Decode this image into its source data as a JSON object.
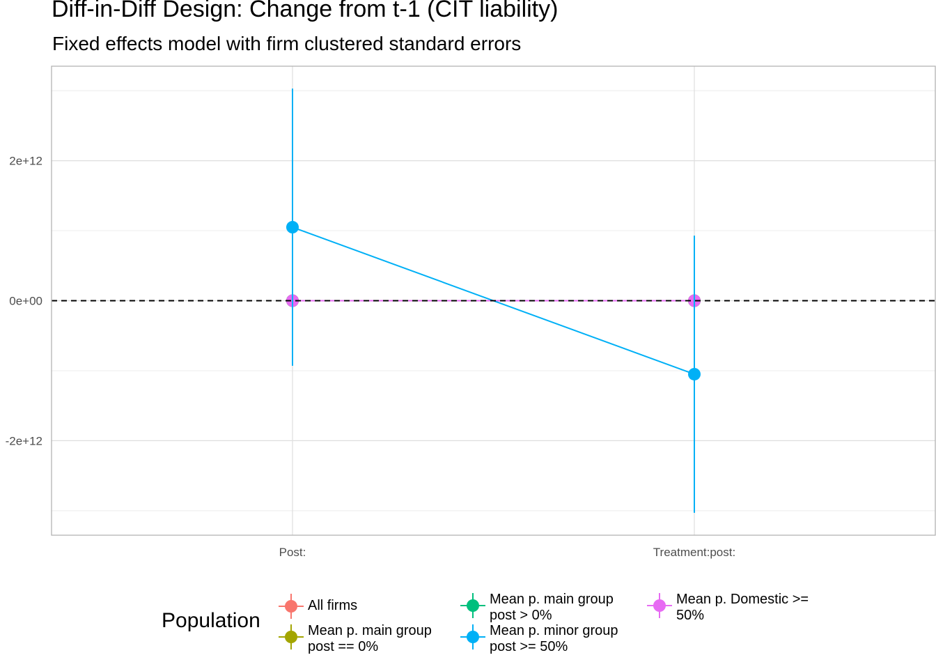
{
  "chart_data": {
    "type": "scatter",
    "title": "Diff-in-Diff Design: Change from t-1 (CIT liability)",
    "subtitle": "Fixed effects model with firm clustered standard errors",
    "xlabel": "",
    "ylabel": "",
    "categories": [
      "Post:",
      "Treatment:post:"
    ],
    "ylim": [
      -3350000000000.0,
      3350000000000.0
    ],
    "y_ticks": [
      {
        "value": 2000000000000.0,
        "label": "2e+12"
      },
      {
        "value": 0,
        "label": "0e+00"
      },
      {
        "value": -2000000000000.0,
        "label": "-2e+12"
      }
    ],
    "grid": true,
    "reference_line": {
      "y": 0,
      "style": "dashed"
    },
    "legend": {
      "title": "Population",
      "position": "bottom"
    },
    "series": [
      {
        "name": "All firms",
        "color": "#F8766D",
        "values": [
          0,
          0
        ],
        "ci_low": [
          0,
          0
        ],
        "ci_high": [
          0,
          0
        ]
      },
      {
        "name": "Mean p. main group post == 0%",
        "color": "#A3A500",
        "values": [
          0,
          0
        ],
        "ci_low": [
          0,
          0
        ],
        "ci_high": [
          0,
          0
        ]
      },
      {
        "name": "Mean p. main group post > 0%",
        "color": "#00BF7D",
        "values": [
          0,
          0
        ],
        "ci_low": [
          0,
          0
        ],
        "ci_high": [
          0,
          0
        ]
      },
      {
        "name": "Mean p. minor group post >= 50%",
        "color": "#00B0F6",
        "values": [
          1050000000000.0,
          -1050000000000.0
        ],
        "ci_low": [
          -930000000000.0,
          -3030000000000.0
        ],
        "ci_high": [
          3030000000000.0,
          930000000000.0
        ]
      },
      {
        "name": "Mean p. Domestic >= 50%",
        "color": "#E76BF3",
        "values": [
          0,
          0
        ],
        "ci_low": [
          0,
          0
        ],
        "ci_high": [
          0,
          0
        ]
      }
    ]
  },
  "legend_items": [
    {
      "line1": "All firms",
      "line2": ""
    },
    {
      "line1": "Mean p. main group",
      "line2": "post == 0%"
    },
    {
      "line1": "Mean p. main group",
      "line2": "post > 0%"
    },
    {
      "line1": "Mean p. minor group",
      "line2": "post >= 50%"
    },
    {
      "line1": "Mean p. Domestic >=",
      "line2": "50%"
    }
  ]
}
